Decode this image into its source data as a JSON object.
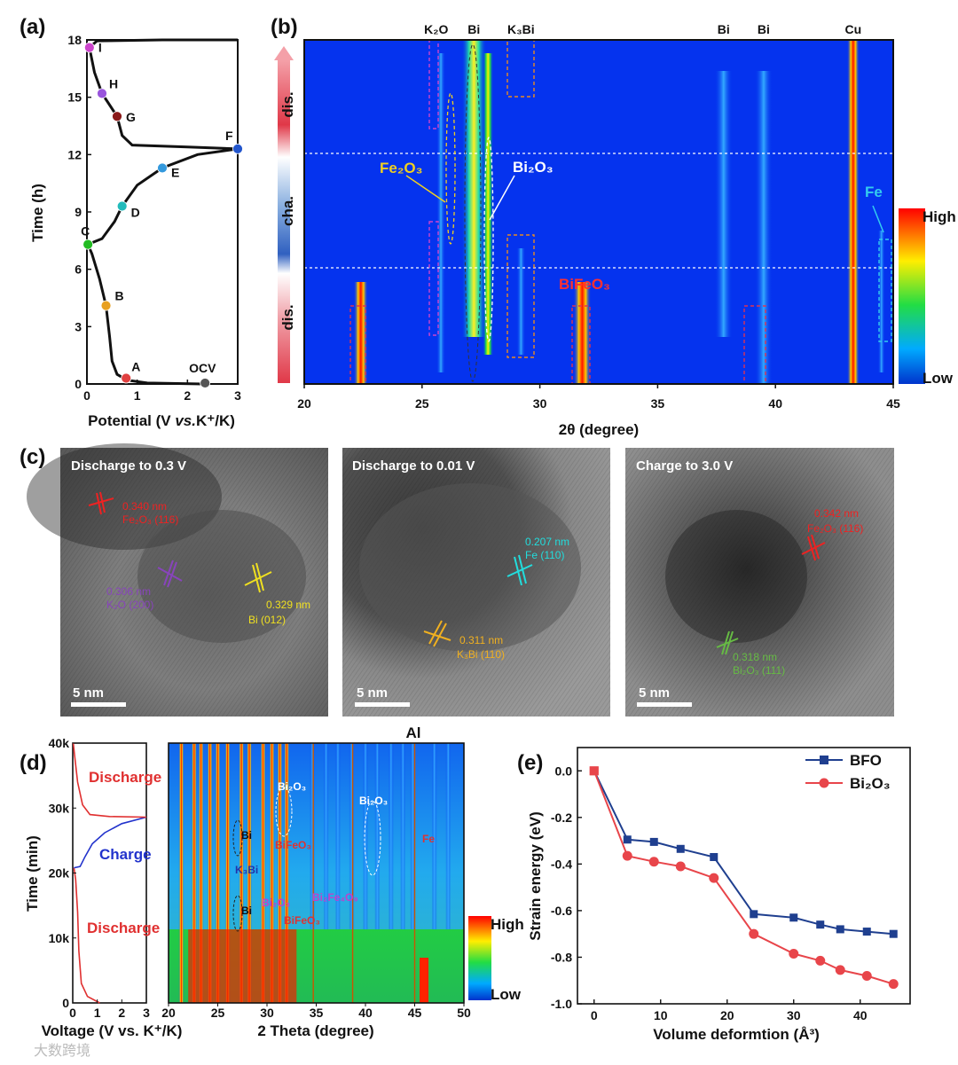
{
  "panels": {
    "a": "(a)",
    "b": "(b)",
    "c": "(c)",
    "d": "(d)",
    "e": "(e)"
  },
  "colors": {
    "red": "#e03030",
    "blue": "#1f3f8f",
    "low": "#0033cc",
    "high": "#ff0000"
  },
  "chart_data": [
    {
      "id": "a",
      "type": "line",
      "xlabel_prefix": "Potential (V ",
      "xlabel_italic": "vs.",
      "xlabel_suffix": "K⁺/K)",
      "ylabel": "Time (h)",
      "xlim": [
        0,
        3
      ],
      "ylim": [
        0,
        18
      ],
      "xticks": [
        "0",
        "1",
        "2",
        "3"
      ],
      "yticks": [
        "0",
        "3",
        "6",
        "9",
        "12",
        "15",
        "18"
      ],
      "curve": [
        [
          2.3,
          0
        ],
        [
          1.2,
          0.05
        ],
        [
          0.8,
          0.2
        ],
        [
          0.6,
          0.5
        ],
        [
          0.5,
          1.2
        ],
        [
          0.45,
          2.5
        ],
        [
          0.38,
          4.1
        ],
        [
          0.25,
          5.5
        ],
        [
          0.1,
          6.8
        ],
        [
          0.02,
          7.3
        ],
        [
          0.3,
          7.6
        ],
        [
          0.55,
          8.5
        ],
        [
          0.7,
          9.3
        ],
        [
          1.0,
          10.4
        ],
        [
          1.5,
          11.3
        ],
        [
          2.2,
          12.0
        ],
        [
          3.0,
          12.3
        ],
        [
          2.0,
          12.4
        ],
        [
          0.9,
          12.5
        ],
        [
          0.7,
          13.0
        ],
        [
          0.6,
          14.0
        ],
        [
          0.4,
          14.8
        ],
        [
          0.3,
          15.2
        ],
        [
          0.15,
          16.3
        ],
        [
          0.05,
          17.6
        ],
        [
          0.2,
          17.95
        ],
        [
          1.5,
          18.0
        ],
        [
          3.0,
          18.0
        ]
      ],
      "points": [
        {
          "label": "I",
          "v": 0.05,
          "t": 17.6,
          "color": "#cc44cc"
        },
        {
          "label": "H",
          "v": 0.3,
          "t": 15.2,
          "color": "#9955dd"
        },
        {
          "label": "G",
          "v": 0.6,
          "t": 14.0,
          "color": "#8b1a1a"
        },
        {
          "label": "F",
          "v": 3.0,
          "t": 12.3,
          "color": "#2255cc"
        },
        {
          "label": "E",
          "v": 1.5,
          "t": 11.3,
          "color": "#3399dd"
        },
        {
          "label": "D",
          "v": 0.7,
          "t": 9.3,
          "color": "#22bbbb"
        },
        {
          "label": "C",
          "v": 0.02,
          "t": 7.3,
          "color": "#22bb22"
        },
        {
          "label": "B",
          "v": 0.38,
          "t": 4.1,
          "color": "#e8a020"
        },
        {
          "label": "A",
          "v": 0.78,
          "t": 0.3,
          "color": "#e04040"
        },
        {
          "label": "OCV",
          "v": 2.35,
          "t": 0.05,
          "color": "#555555"
        }
      ]
    },
    {
      "id": "b",
      "type": "heatmap",
      "xlabel": "2θ (degree)",
      "xlim": [
        20,
        45
      ],
      "xticks": [
        "20",
        "25",
        "30",
        "35",
        "40",
        "45"
      ],
      "peak_labels": [
        {
          "text": "K₂O",
          "x": 25.6,
          "color": "#aa22cc"
        },
        {
          "text": "Bi",
          "x": 27.2,
          "color": "#22aaee"
        },
        {
          "text": "K₃Bi",
          "x": 29.2,
          "color": "#e88a20"
        },
        {
          "text": "Bi",
          "x": 37.8,
          "color": "#22aaee"
        },
        {
          "text": "Bi",
          "x": 39.5,
          "color": "#22aaee"
        },
        {
          "text": "Cu",
          "x": 43.3,
          "color": "#111111"
        }
      ],
      "stage_labels": [
        "dis.",
        "cha.",
        "dis."
      ],
      "annotations": [
        {
          "text": "Fe₂O₃",
          "color": "#f0d020"
        },
        {
          "text": "Bi₂O₃",
          "color": "#ffffff"
        },
        {
          "text": "BiFeO₃",
          "color": "#ff3030"
        },
        {
          "text": "Fe",
          "color": "#33ccee"
        }
      ],
      "colorbar": {
        "high": "High",
        "low": "Low"
      }
    },
    {
      "id": "c",
      "type": "image",
      "images": [
        {
          "title": "Discharge to 0.3 V",
          "scale": "5 nm",
          "notes": [
            {
              "d": "0.340 nm",
              "hkl": "Fe₂O₃ (116)",
              "color": "#ee2222"
            },
            {
              "d": "0.306 nm",
              "hkl": "K₂O (200)",
              "color": "#8844bb"
            },
            {
              "d": "0.329 nm",
              "hkl": "Bi (012)",
              "color": "#f0e020"
            }
          ]
        },
        {
          "title": "Discharge to 0.01 V",
          "scale": "5 nm",
          "notes": [
            {
              "d": "0.207 nm",
              "hkl": "Fe (110)",
              "color": "#22dddd"
            },
            {
              "d": "0.311 nm",
              "hkl": "K₃Bi (110)",
              "color": "#f0b020"
            }
          ]
        },
        {
          "title": "Charge to 3.0 V",
          "scale": "5 nm",
          "notes": [
            {
              "d": "0.342 nm",
              "hkl": "Fe₂O₃ (116)",
              "color": "#ee2222"
            },
            {
              "d": "0.318 nm",
              "hkl": "Bi₂O₃ (111)",
              "color": "#66bb44"
            }
          ]
        }
      ]
    },
    {
      "id": "d_left",
      "type": "line",
      "xlabel": "Voltage (V vs. K⁺/K)",
      "ylabel": "Time (min)",
      "xlim": [
        0,
        3
      ],
      "ylim": [
        0,
        40000
      ],
      "xticks": [
        "0",
        "1",
        "2",
        "3"
      ],
      "yticks": [
        "0",
        "10k",
        "20k",
        "30k",
        "40k"
      ],
      "segments": [
        {
          "name": "Discharge",
          "color": "#e03030",
          "points": [
            [
              1.1,
              0
            ],
            [
              0.6,
              1000
            ],
            [
              0.35,
              3000
            ],
            [
              0.25,
              8000
            ],
            [
              0.2,
              14000
            ],
            [
              0.12,
              19000
            ],
            [
              0.05,
              20800
            ]
          ]
        },
        {
          "name": "Charge",
          "color": "#2233cc",
          "points": [
            [
              0.05,
              20800
            ],
            [
              0.3,
              21000
            ],
            [
              0.5,
              22500
            ],
            [
              0.8,
              24500
            ],
            [
              1.3,
              26200
            ],
            [
              2.0,
              27600
            ],
            [
              3.0,
              28600
            ]
          ]
        },
        {
          "name": "Discharge",
          "color": "#e03030",
          "points": [
            [
              3.0,
              28600
            ],
            [
              1.5,
              28700
            ],
            [
              0.7,
              29000
            ],
            [
              0.4,
              30500
            ],
            [
              0.2,
              34000
            ],
            [
              0.08,
              38000
            ],
            [
              0.02,
              40000
            ]
          ]
        }
      ],
      "labels": [
        "Discharge",
        "Charge",
        "Discharge"
      ]
    },
    {
      "id": "d_right",
      "type": "heatmap",
      "xlabel": "2 Theta (degree)",
      "xlim": [
        20,
        50
      ],
      "xticks": [
        "20",
        "25",
        "30",
        "35",
        "40",
        "45",
        "50"
      ],
      "top_label": "Al",
      "annotations": [
        "Bi₂O₃",
        "Bi₂O₃",
        "Bi",
        "BiFeO₃",
        "K₃Bi",
        "Bi₂O₃",
        "Bi₂Fe₄O₉",
        "Bi",
        "BiFeO₃",
        "Fe"
      ],
      "colorbar": {
        "high": "High",
        "low": "Low"
      }
    },
    {
      "id": "e",
      "type": "line",
      "xlabel": "Volume deformtion (Å³)",
      "ylabel": "Strain energy (eV)",
      "xlim": [
        -2.5,
        47.5
      ],
      "ylim": [
        -1.0,
        0.1
      ],
      "xticks": [
        0,
        10,
        20,
        30,
        40
      ],
      "yticks": [
        0.0,
        -0.2,
        -0.4,
        -0.6,
        -0.8,
        -1.0
      ],
      "series": [
        {
          "name": "BFO",
          "color": "#1f3f8f",
          "marker": "square",
          "x": [
            0,
            5,
            9,
            13,
            18,
            24,
            30,
            34,
            37,
            41,
            45
          ],
          "y": [
            0.0,
            -0.295,
            -0.305,
            -0.335,
            -0.37,
            -0.615,
            -0.63,
            -0.66,
            -0.68,
            -0.69,
            -0.7
          ]
        },
        {
          "name": "Bi₂O₃",
          "color": "#e8454a",
          "marker": "circle",
          "x": [
            0,
            5,
            9,
            13,
            18,
            24,
            30,
            34,
            37,
            41,
            45
          ],
          "y": [
            0.0,
            -0.365,
            -0.39,
            -0.41,
            -0.46,
            -0.7,
            -0.785,
            -0.815,
            -0.855,
            -0.88,
            -0.915
          ]
        }
      ]
    }
  ],
  "watermark": "大数跨境"
}
